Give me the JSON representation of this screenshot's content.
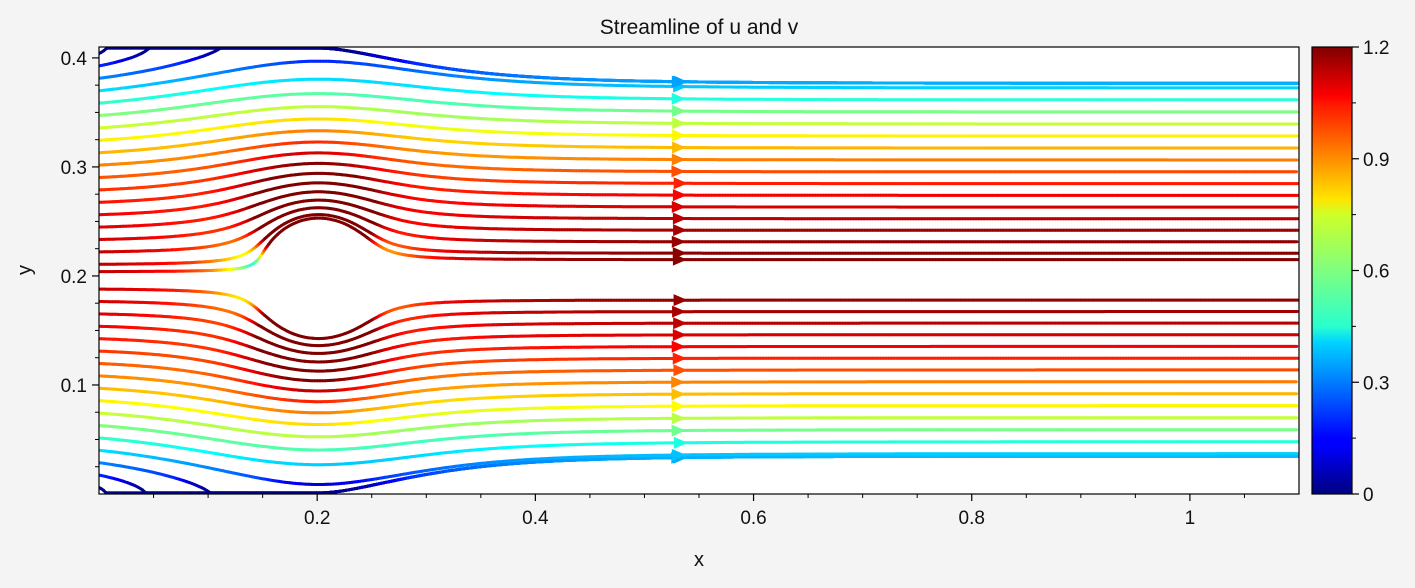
{
  "chart_data": {
    "type": "streamline",
    "title": "Streamline of u and v",
    "xlabel": "x",
    "ylabel": "y",
    "xlim": [
      0.0,
      1.1
    ],
    "ylim": [
      0.0,
      0.41
    ],
    "xticks": [
      0.2,
      0.4,
      0.6,
      0.8,
      1.0
    ],
    "xtick_labels": [
      "0.2",
      "0.4",
      "0.6",
      "0.8",
      "1"
    ],
    "yticks": [
      0.1,
      0.2,
      0.3,
      0.4
    ],
    "ytick_labels": [
      "0.1",
      "0.2",
      "0.3",
      "0.4"
    ],
    "obstacle": {
      "shape": "cylinder",
      "center": [
        0.2,
        0.2
      ],
      "radius": 0.05
    },
    "inflow_profile": "parabolic",
    "max_speed": 1.2,
    "colormap": "jet",
    "colorbar": {
      "min": 0,
      "max": 1.2,
      "ticks": [
        0,
        0.3,
        0.6,
        0.9,
        1.2
      ],
      "tick_labels": [
        "0",
        "0.3",
        "0.6",
        "0.9",
        "1.2"
      ],
      "placement": "right"
    },
    "grid": false
  }
}
